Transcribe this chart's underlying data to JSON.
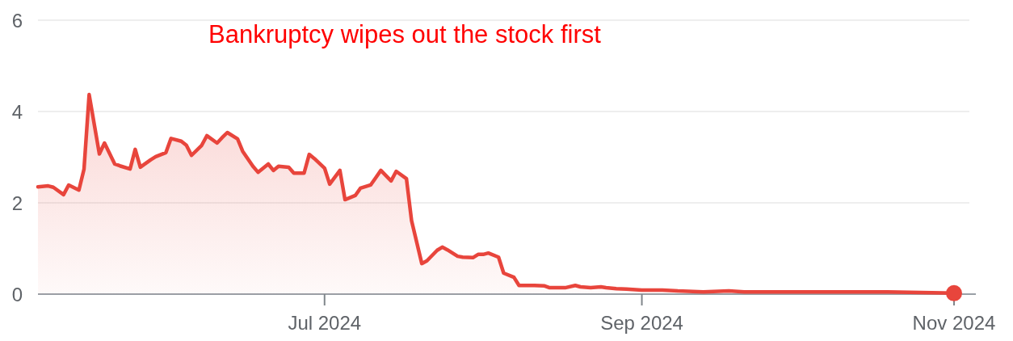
{
  "chart_data": {
    "type": "area",
    "title": "Bankruptcy wipes out the stock first",
    "xlim": [
      "2024-05-06",
      "2024-11-04"
    ],
    "xticks": [
      {
        "value": "2024-07-01",
        "label": "Jul 2024"
      },
      {
        "value": "2024-09-01",
        "label": "Sep 2024"
      },
      {
        "value": "2024-11-01",
        "label": "Nov 2024"
      }
    ],
    "ylim": [
      0,
      6
    ],
    "yticks": [
      0,
      2,
      4,
      6
    ],
    "grid": "y",
    "marker": "none",
    "series": [
      {
        "color": "#e8453c",
        "x": [
          "2024-05-06",
          "2024-05-08",
          "2024-05-09",
          "2024-05-11",
          "2024-05-12",
          "2024-05-14",
          "2024-05-15",
          "2024-05-16",
          "2024-05-18",
          "2024-05-19",
          "2024-05-21",
          "2024-05-22",
          "2024-05-24",
          "2024-05-25",
          "2024-05-26",
          "2024-05-28",
          "2024-05-29",
          "2024-05-31",
          "2024-06-01",
          "2024-06-03",
          "2024-06-04",
          "2024-06-05",
          "2024-06-07",
          "2024-06-08",
          "2024-06-10",
          "2024-06-11",
          "2024-06-12",
          "2024-06-14",
          "2024-06-15",
          "2024-06-17",
          "2024-06-18",
          "2024-06-20",
          "2024-06-21",
          "2024-06-22",
          "2024-06-24",
          "2024-06-25",
          "2024-06-27",
          "2024-06-28",
          "2024-06-29",
          "2024-07-01",
          "2024-07-02",
          "2024-07-04",
          "2024-07-05",
          "2024-07-07",
          "2024-07-08",
          "2024-07-10",
          "2024-07-11",
          "2024-07-12",
          "2024-07-14",
          "2024-07-15",
          "2024-07-17",
          "2024-07-18",
          "2024-07-20",
          "2024-07-21",
          "2024-07-23",
          "2024-07-24",
          "2024-07-25",
          "2024-07-27",
          "2024-07-28",
          "2024-07-30",
          "2024-07-31",
          "2024-08-01",
          "2024-08-02",
          "2024-08-04",
          "2024-08-05",
          "2024-08-07",
          "2024-08-08",
          "2024-08-11",
          "2024-08-13",
          "2024-08-14",
          "2024-08-17",
          "2024-08-19",
          "2024-08-20",
          "2024-08-22",
          "2024-08-24",
          "2024-08-25",
          "2024-08-27",
          "2024-08-29",
          "2024-09-01",
          "2024-09-05",
          "2024-09-08",
          "2024-09-13",
          "2024-09-18",
          "2024-09-21",
          "2024-09-27",
          "2024-10-04",
          "2024-10-19",
          "2024-11-01"
        ],
        "values": [
          2.35,
          2.37,
          2.34,
          2.18,
          2.39,
          2.28,
          2.74,
          4.37,
          3.07,
          3.31,
          2.85,
          2.81,
          2.74,
          3.17,
          2.78,
          2.94,
          3.01,
          3.1,
          3.41,
          3.35,
          3.26,
          3.04,
          3.26,
          3.47,
          3.31,
          3.43,
          3.54,
          3.4,
          3.13,
          2.8,
          2.67,
          2.85,
          2.71,
          2.8,
          2.78,
          2.65,
          2.65,
          3.06,
          2.97,
          2.76,
          2.41,
          2.71,
          2.07,
          2.16,
          2.32,
          2.39,
          2.55,
          2.71,
          2.48,
          2.69,
          2.53,
          1.61,
          0.67,
          0.73,
          0.96,
          1.03,
          0.97,
          0.83,
          0.81,
          0.8,
          0.87,
          0.87,
          0.9,
          0.81,
          0.46,
          0.37,
          0.19,
          0.19,
          0.18,
          0.14,
          0.14,
          0.19,
          0.16,
          0.14,
          0.16,
          0.14,
          0.12,
          0.11,
          0.09,
          0.09,
          0.07,
          0.05,
          0.07,
          0.05,
          0.05,
          0.05,
          0.05,
          0.02
        ]
      },
      {
        "type": "scatter",
        "color": "#e8453c",
        "marker": "circle",
        "x": [
          "2024-11-01"
        ],
        "values": [
          0.02
        ]
      }
    ]
  }
}
